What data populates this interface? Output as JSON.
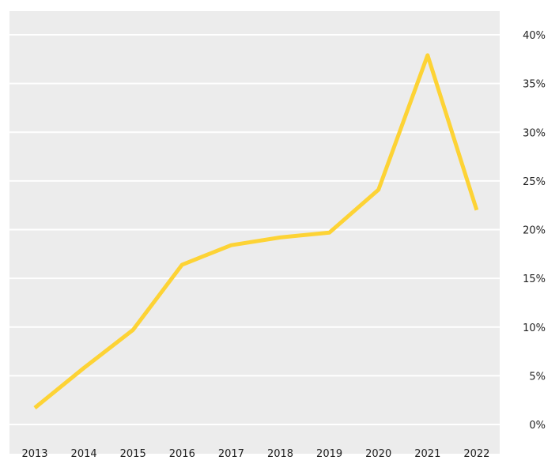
{
  "chart_data": {
    "type": "line",
    "title": "",
    "xlabel": "",
    "ylabel": "",
    "categories": [
      "2013",
      "2014",
      "2015",
      "2016",
      "2017",
      "2018",
      "2019",
      "2020",
      "2021",
      "2022"
    ],
    "series": [
      {
        "values": [
          1.7,
          5.8,
          9.7,
          16.4,
          18.4,
          19.2,
          19.7,
          24.1,
          37.9,
          22.0
        ]
      }
    ],
    "ylim": [
      0,
      40
    ],
    "yticks": [
      0,
      5,
      10,
      15,
      20,
      25,
      30,
      35,
      40
    ],
    "ytick_labels": [
      "0%",
      "5%",
      "10%",
      "15%",
      "20%",
      "25%",
      "30%",
      "35%",
      "40%"
    ],
    "y_axis_side": "right",
    "grid": true,
    "legend": "none",
    "colors": {
      "line": "#fdd335",
      "plot_background": "#ececec",
      "grid": "#ffffff",
      "text": "#222222"
    }
  }
}
